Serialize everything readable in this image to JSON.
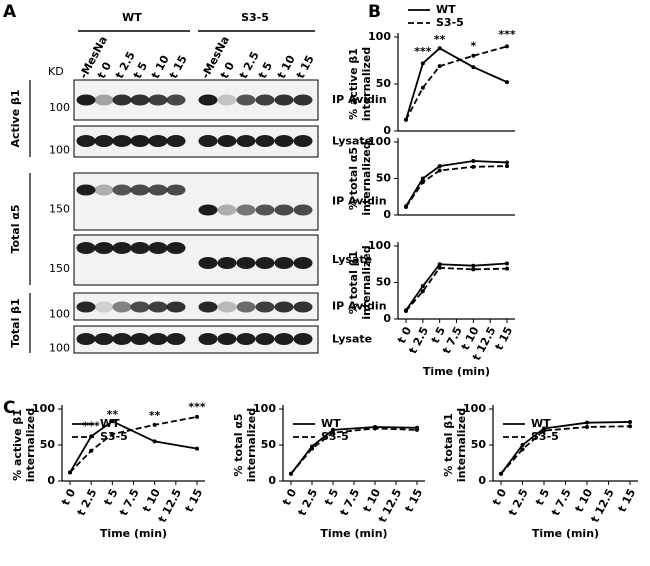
{
  "panel_labels": [
    "A",
    "B",
    "C"
  ],
  "blot": {
    "groups": [
      "WT",
      "S3-5"
    ],
    "lanes": [
      "-MesNa",
      "t 0",
      "t 2.5",
      "t 5",
      "t 10",
      "t 15",
      "-MesNa",
      "t 0",
      "t 2.5",
      "t 5",
      "t 10",
      "t 15"
    ],
    "kd_label": "KD",
    "rows": [
      {
        "name": "Active β1",
        "boxes": [
          {
            "label": "IP Avidin",
            "marker": "100"
          },
          {
            "label": "Lysate",
            "marker": "100"
          }
        ]
      },
      {
        "name": "Total α5",
        "boxes": [
          {
            "label": "IP Avidin",
            "marker": "150"
          },
          {
            "label": "Lysate",
            "marker": "150"
          }
        ]
      },
      {
        "name": "Total β1",
        "boxes": [
          {
            "label": "IP Avidin",
            "marker": "100"
          },
          {
            "label": "Lysate",
            "marker": "100"
          }
        ]
      }
    ]
  },
  "chart_data": [
    {
      "type": "line",
      "ylabel": [
        "% active β1",
        "internalized"
      ],
      "xlim": [
        0,
        15
      ],
      "ylim": [
        0,
        100
      ],
      "yticks": [
        0,
        50,
        100
      ],
      "x": [
        0,
        2.5,
        5,
        10,
        15
      ],
      "legend": "upper left",
      "series": [
        {
          "name": "WT",
          "color": "#000000",
          "dashed": false,
          "values": [
            12,
            72,
            88,
            68,
            52
          ]
        },
        {
          "name": "S3-5",
          "color": "#000000",
          "dashed": true,
          "values": [
            12,
            46,
            69,
            80,
            90
          ]
        }
      ],
      "annotations": [
        {
          "x": 2.5,
          "y": 84,
          "text": "***"
        },
        {
          "x": 5,
          "y": 97,
          "text": "**"
        },
        {
          "x": 10,
          "y": 90,
          "text": "*"
        },
        {
          "x": 15,
          "y": 102,
          "text": "***"
        }
      ]
    },
    {
      "type": "line",
      "ylabel": [
        "% total α5",
        "internalized"
      ],
      "xlim": [
        0,
        15
      ],
      "ylim": [
        0,
        100
      ],
      "yticks": [
        0,
        50,
        100
      ],
      "x": [
        0,
        2.5,
        5,
        10,
        15
      ],
      "series": [
        {
          "name": "WT",
          "color": "#000000",
          "dashed": false,
          "values": [
            12,
            50,
            67,
            74,
            72
          ]
        },
        {
          "name": "S3-5",
          "color": "#000000",
          "dashed": true,
          "values": [
            11,
            45,
            61,
            66,
            67
          ]
        }
      ]
    },
    {
      "type": "line",
      "ylabel": [
        "% total β1",
        "internalized"
      ],
      "xlim": [
        0,
        15
      ],
      "ylim": [
        0,
        100
      ],
      "yticks": [
        0,
        50,
        100
      ],
      "x": [
        0,
        2.5,
        5,
        10,
        15
      ],
      "xlabel": "Time (min)",
      "xticks": [
        {
          "value": 0,
          "label": "t 0"
        },
        {
          "value": 2.5,
          "label": "t 2.5"
        },
        {
          "value": 5,
          "label": "t 5"
        },
        {
          "value": 7.5,
          "label": "t 7.5"
        },
        {
          "value": 10,
          "label": "t 10"
        },
        {
          "value": 12.5,
          "label": "t 12.5"
        },
        {
          "value": 15,
          "label": "t 15"
        }
      ],
      "series": [
        {
          "name": "WT",
          "color": "#000000",
          "dashed": false,
          "values": [
            12,
            45,
            75,
            73,
            76
          ]
        },
        {
          "name": "S3-5",
          "color": "#000000",
          "dashed": true,
          "values": [
            11,
            38,
            70,
            68,
            69
          ]
        }
      ]
    },
    {
      "type": "line",
      "ylabel": [
        "% active β1",
        "internalized"
      ],
      "xlim": [
        0,
        15
      ],
      "ylim": [
        0,
        100
      ],
      "yticks": [
        0,
        50,
        100
      ],
      "x": [
        0,
        2.5,
        5,
        10,
        15
      ],
      "xlabel": "Time (min)",
      "legend": "upper left",
      "xticks": [
        {
          "value": 0,
          "label": "t 0"
        },
        {
          "value": 2.5,
          "label": "t 2.5"
        },
        {
          "value": 5,
          "label": "t 5"
        },
        {
          "value": 7.5,
          "label": "t 7.5"
        },
        {
          "value": 10,
          "label": "t 10"
        },
        {
          "value": 12.5,
          "label": "t 12.5"
        },
        {
          "value": 15,
          "label": "t 15"
        }
      ],
      "series": [
        {
          "name": "WT",
          "color": "#000000",
          "dashed": false,
          "values": [
            12,
            62,
            83,
            55,
            45
          ]
        },
        {
          "name": "S3-5",
          "color": "#000000",
          "dashed": true,
          "values": [
            12,
            42,
            65,
            78,
            89
          ]
        }
      ],
      "annotations": [
        {
          "x": 2.5,
          "y": 76,
          "text": "***"
        },
        {
          "x": 5,
          "y": 92,
          "text": "**"
        },
        {
          "x": 10,
          "y": 90,
          "text": "**"
        },
        {
          "x": 15,
          "y": 102,
          "text": "***"
        }
      ]
    },
    {
      "type": "line",
      "ylabel": [
        "% total α5",
        "internalized"
      ],
      "xlim": [
        0,
        15
      ],
      "ylim": [
        0,
        100
      ],
      "yticks": [
        0,
        50,
        100
      ],
      "x": [
        0,
        2.5,
        5,
        10,
        15
      ],
      "xlabel": "Time (min)",
      "legend": "upper left",
      "xticks": [
        {
          "value": 0,
          "label": "t 0"
        },
        {
          "value": 2.5,
          "label": "t 2.5"
        },
        {
          "value": 5,
          "label": "t 5"
        },
        {
          "value": 7.5,
          "label": "t 7.5"
        },
        {
          "value": 10,
          "label": "t 10"
        },
        {
          "value": 12.5,
          "label": "t 12.5"
        },
        {
          "value": 15,
          "label": "t 15"
        }
      ],
      "series": [
        {
          "name": "WT",
          "color": "#000000",
          "dashed": false,
          "values": [
            10,
            48,
            71,
            75,
            74
          ]
        },
        {
          "name": "S3-5",
          "color": "#000000",
          "dashed": true,
          "values": [
            10,
            45,
            67,
            73,
            71
          ]
        }
      ]
    },
    {
      "type": "line",
      "ylabel": [
        "% total β1",
        "internalized"
      ],
      "xlim": [
        0,
        15
      ],
      "ylim": [
        0,
        100
      ],
      "yticks": [
        0,
        50,
        100
      ],
      "x": [
        0,
        2.5,
        5,
        10,
        15
      ],
      "xlabel": "Time (min)",
      "legend": "upper left",
      "xticks": [
        {
          "value": 0,
          "label": "t 0"
        },
        {
          "value": 2.5,
          "label": "t 2.5"
        },
        {
          "value": 5,
          "label": "t 5"
        },
        {
          "value": 7.5,
          "label": "t 7.5"
        },
        {
          "value": 10,
          "label": "t 10"
        },
        {
          "value": 12.5,
          "label": "t 12.5"
        },
        {
          "value": 15,
          "label": "t 15"
        }
      ],
      "series": [
        {
          "name": "WT",
          "color": "#000000",
          "dashed": false,
          "values": [
            10,
            50,
            73,
            81,
            82
          ]
        },
        {
          "name": "S3-5",
          "color": "#000000",
          "dashed": true,
          "values": [
            10,
            44,
            70,
            75,
            76
          ]
        }
      ]
    }
  ]
}
